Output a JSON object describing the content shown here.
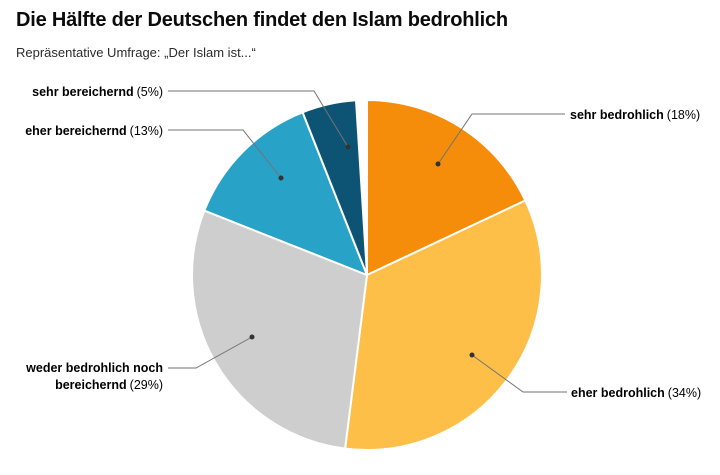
{
  "header": {
    "title": "Die Hälfte der Deutschen findet den Islam bedrohlich",
    "subtitle": "Repräsentative Umfrage: „Der Islam ist...“"
  },
  "chart_data": {
    "type": "pie",
    "title": "Die Hälfte der Deutschen findet den Islam bedrohlich",
    "subtitle": "Repräsentative Umfrage: „Der Islam ist...“",
    "unit": "%",
    "start_angle": "12 o'clock",
    "direction": "clockwise",
    "legend_position": "callout-labels",
    "slices": [
      {
        "label": "sehr bedrohlich",
        "value": 18,
        "color": "#F58C0A"
      },
      {
        "label": "eher bedrohlich",
        "value": 34,
        "color": "#FEBF48"
      },
      {
        "label": "weder bedrohlich noch bereichernd",
        "value": 29,
        "color": "#CECECE"
      },
      {
        "label": "eher bereichernd",
        "value": 13,
        "color": "#29A2C8"
      },
      {
        "label": "sehr bereichernd",
        "value": 5,
        "color": "#0D5474"
      }
    ]
  }
}
